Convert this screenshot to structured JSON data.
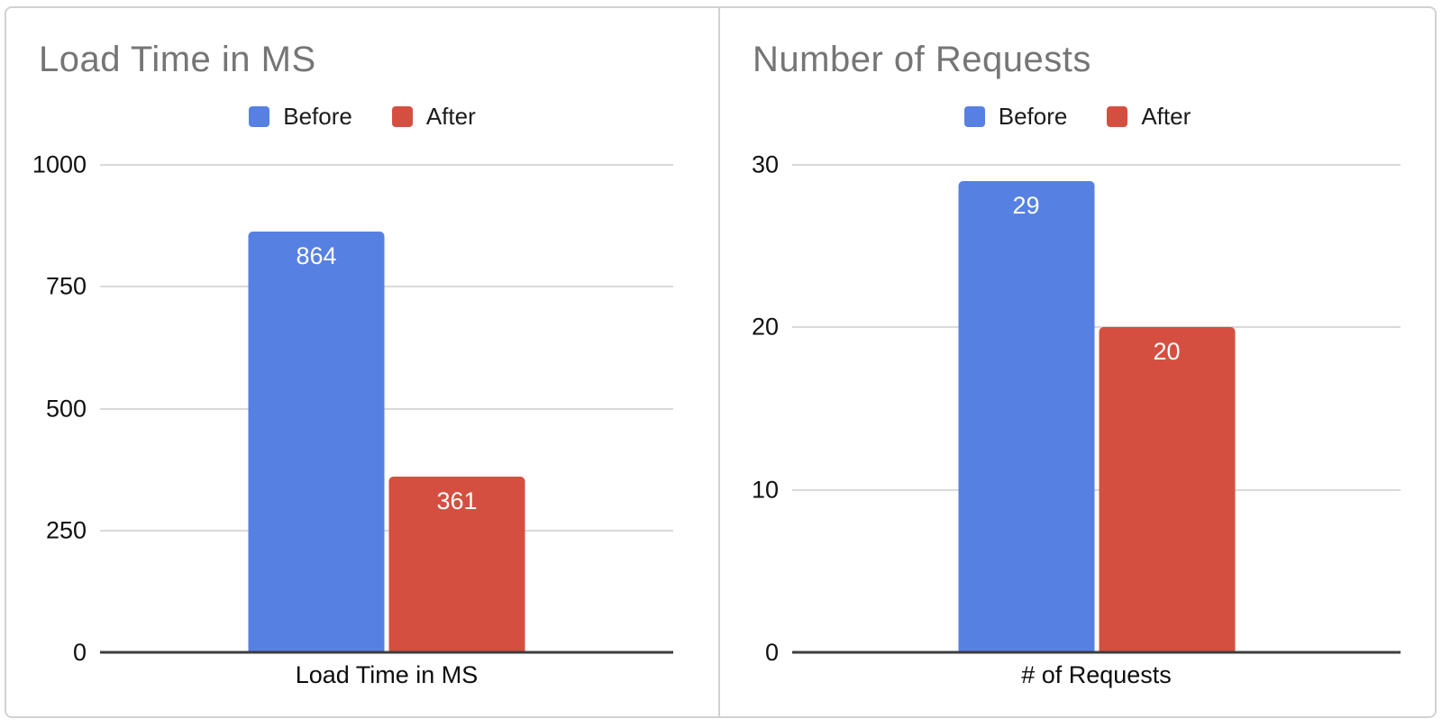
{
  "colors": {
    "series_before": "#5780E3",
    "series_after": "#D54F40",
    "title_text": "#757575",
    "gridline": "#d9d9d9",
    "axis_line": "#3d3d3d",
    "panel_border": "#d2d2d2",
    "bar_value_text": "#ffffff"
  },
  "chart_data": [
    {
      "type": "bar",
      "title": "Load Time in MS",
      "xlabel": "Load Time in MS",
      "categories": [
        "Load Time in MS"
      ],
      "series": [
        {
          "name": "Before",
          "values": [
            864
          ],
          "color": "#5780E3"
        },
        {
          "name": "After",
          "values": [
            361
          ],
          "color": "#D54F40"
        }
      ],
      "bar_labels": [
        "864",
        "361"
      ],
      "ylim": [
        0,
        1000
      ],
      "yticks": [
        1000,
        750,
        500,
        250,
        0
      ],
      "legend": [
        "Before",
        "After"
      ],
      "legend_position": "top",
      "grid": true
    },
    {
      "type": "bar",
      "title": "Number of Requests",
      "xlabel": "# of Requests",
      "categories": [
        "# of Requests"
      ],
      "series": [
        {
          "name": "Before",
          "values": [
            29
          ],
          "color": "#5780E3"
        },
        {
          "name": "After",
          "values": [
            20
          ],
          "color": "#D54F40"
        }
      ],
      "bar_labels": [
        "29",
        "20"
      ],
      "ylim": [
        0,
        30
      ],
      "yticks": [
        30,
        20,
        10,
        0
      ],
      "legend": [
        "Before",
        "After"
      ],
      "legend_position": "top",
      "grid": true
    }
  ]
}
